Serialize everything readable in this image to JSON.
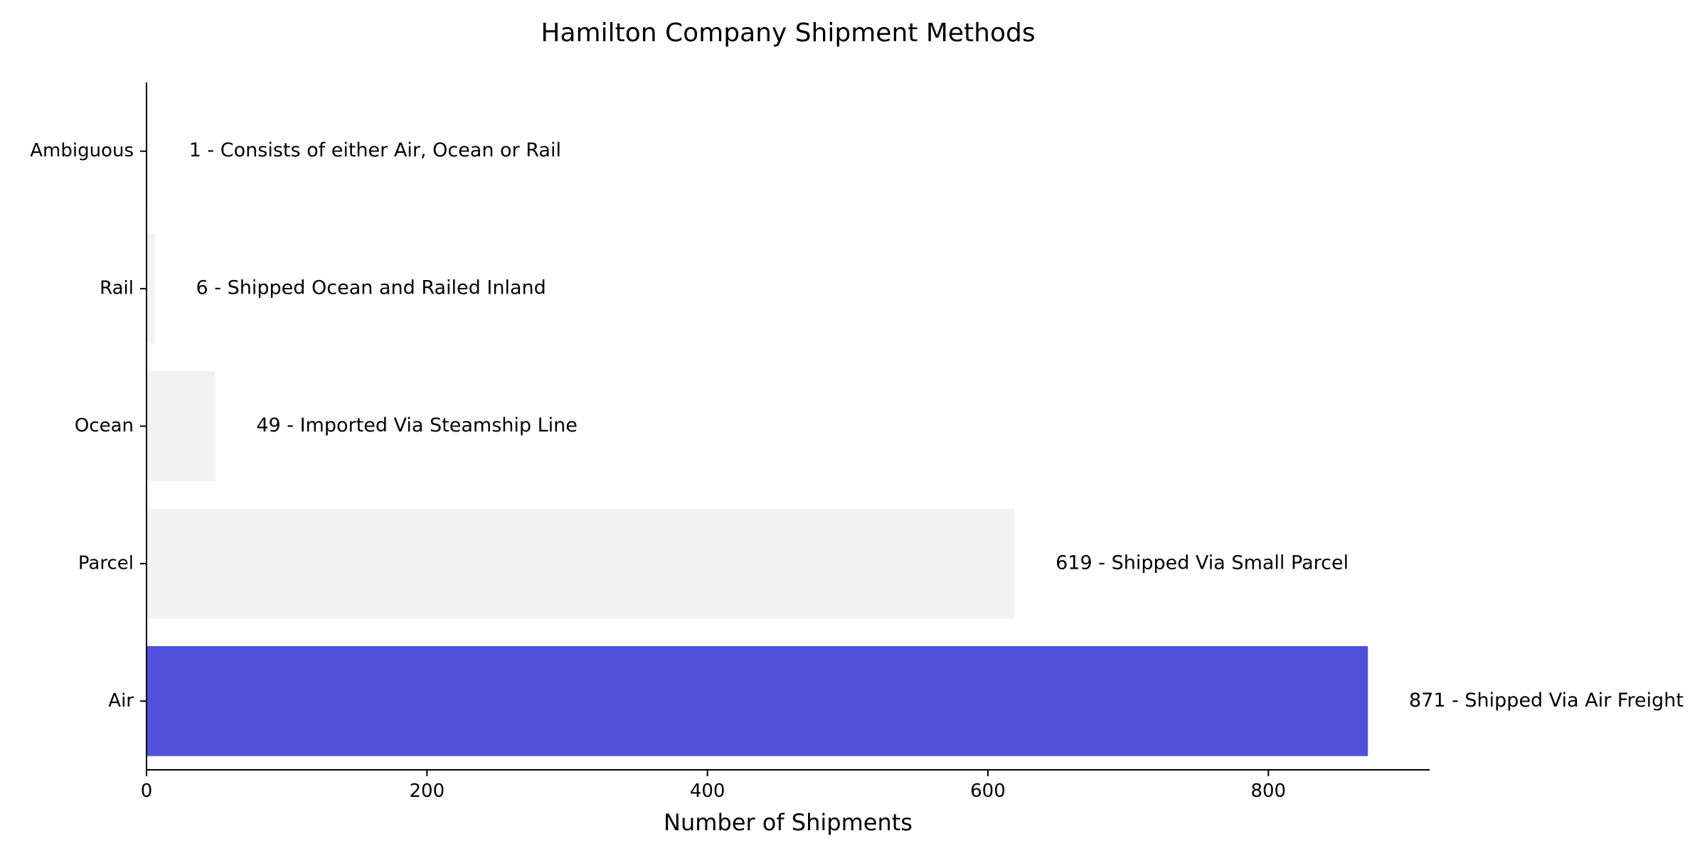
{
  "chart_data": {
    "type": "bar",
    "orientation": "horizontal",
    "title": "Hamilton Company Shipment Methods",
    "xlabel": "Number of Shipments",
    "ylabel": "",
    "xlim": [
      0,
      915
    ],
    "xticks": [
      "0",
      "200",
      "400",
      "600",
      "800"
    ],
    "grid": false,
    "categories": [
      "Air",
      "Parcel",
      "Ocean",
      "Rail",
      "Ambiguous"
    ],
    "values": [
      871,
      619,
      49,
      6,
      1
    ],
    "labels": [
      "871 - Shipped Via Air Freight",
      "619 - Shipped Via Small Parcel",
      "49 - Imported Via Steamship Line",
      "6 - Shipped Ocean and Railed Inland",
      "1 - Consists of either Air, Ocean or Rail"
    ],
    "colors": [
      "#4f50dc",
      "#f2f2f2",
      "#f2f2f2",
      "#f2f2f2",
      "#f2f2f2"
    ]
  }
}
